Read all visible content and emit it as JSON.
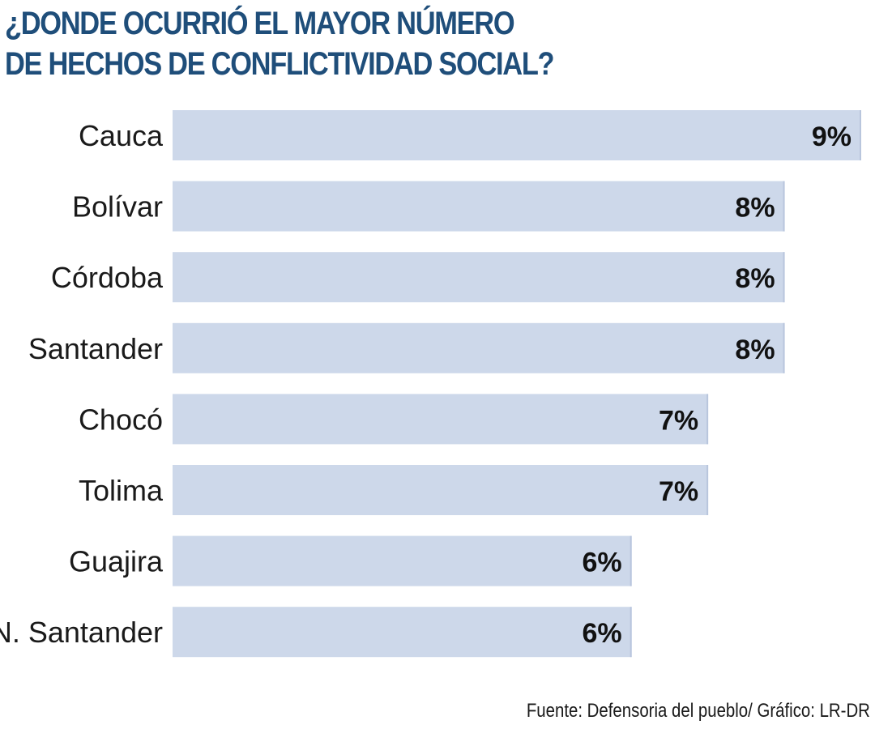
{
  "title_lines": [
    "¿DONDE OCURRIÓ EL MAYOR NÚMERO",
    "DE HECHOS DE CONFLICTIVIDAD SOCIAL?"
  ],
  "source": "Fuente: Defensoria del pueblo/ Gráfico: LR-DR",
  "colors": {
    "title": "#1f4e7a",
    "bar": "#cdd8ea",
    "bar_edge": "#b9c6dd"
  },
  "chart_data": {
    "type": "bar",
    "orientation": "horizontal",
    "title": "¿DONDE OCURRIÓ EL MAYOR NÚMERO DE HECHOS DE CONFLICTIVIDAD SOCIAL?",
    "categories": [
      "Cauca",
      "Bolívar",
      "Córdoba",
      "Santander",
      "Chocó",
      "Tolima",
      "Guajira",
      "N. Santander"
    ],
    "values": [
      9,
      8,
      8,
      8,
      7,
      7,
      6,
      6
    ],
    "value_labels": [
      "9%",
      "8%",
      "8%",
      "8%",
      "7%",
      "7%",
      "6%",
      "6%"
    ],
    "unit": "%",
    "xlim": [
      0,
      9
    ],
    "grid": false,
    "legend": "none"
  }
}
